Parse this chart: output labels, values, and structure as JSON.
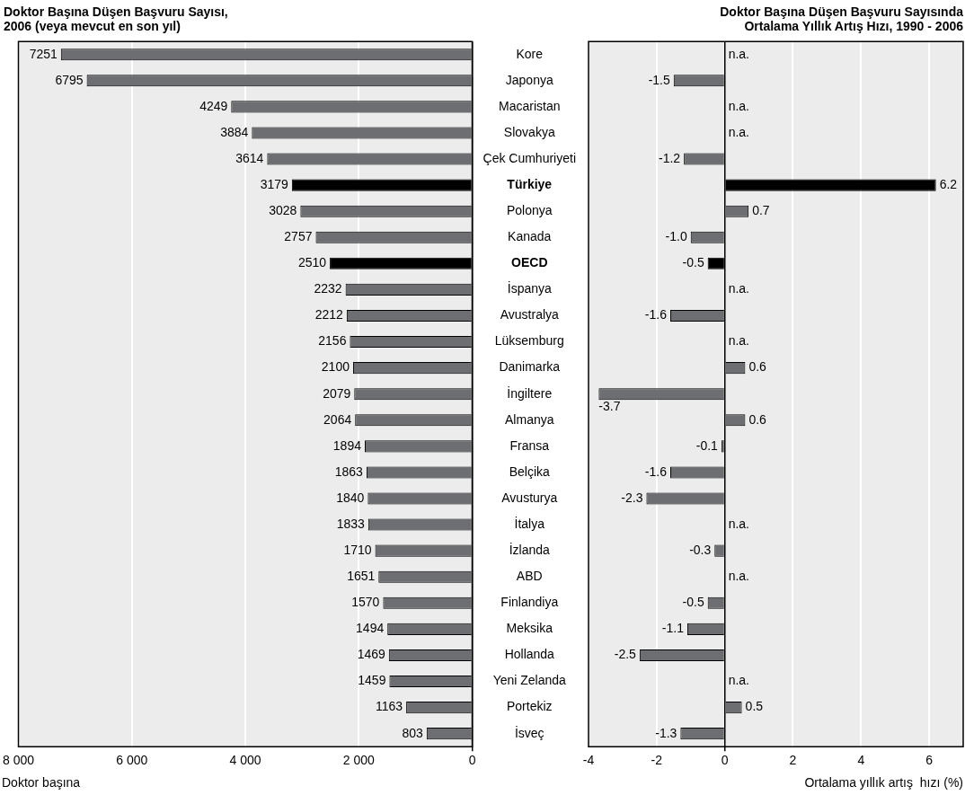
{
  "chart_data": [
    {
      "type": "bar",
      "orientation": "horizontal",
      "title": "Doktor Başına Düşen Başvuru Sayısı,\n2006 (veya mevcut en son yıl)",
      "xlabel": "Doktor başına",
      "categories": [
        "Kore",
        "Japonya",
        "Macaristan",
        "Slovakya",
        "Çek Cumhuriyeti",
        "Türkiye",
        "Polonya",
        "Kanada",
        "OECD",
        "İspanya",
        "Avustralya",
        "Lüksemburg",
        "Danimarka",
        "İngiltere",
        "Almanya",
        "Fransa",
        "Belçika",
        "Avusturya",
        "İtalya",
        "İzlanda",
        "ABD",
        "Finlandiya",
        "Meksika",
        "Hollanda",
        "Yeni Zelanda",
        "Portekiz",
        "İsveç"
      ],
      "values": [
        7251,
        6795,
        4249,
        3884,
        3614,
        3179,
        3028,
        2757,
        2510,
        2232,
        2212,
        2156,
        2100,
        2079,
        2064,
        1894,
        1863,
        1840,
        1833,
        1710,
        1651,
        1570,
        1494,
        1469,
        1459,
        1163,
        803
      ],
      "colors": [
        "#6d6e71",
        "#6d6e71",
        "#6d6e71",
        "#6d6e71",
        "#6d6e71",
        "#000000",
        "#6d6e71",
        "#6d6e71",
        "#000000",
        "#6d6e71",
        "#6d6e71",
        "#6d6e71",
        "#6d6e71",
        "#6d6e71",
        "#6d6e71",
        "#6d6e71",
        "#6d6e71",
        "#6d6e71",
        "#6d6e71",
        "#6d6e71",
        "#6d6e71",
        "#6d6e71",
        "#6d6e71",
        "#6d6e71",
        "#6d6e71",
        "#6d6e71",
        "#6d6e71"
      ],
      "xlim": [
        8000,
        0
      ],
      "xticks": [
        {
          "value": 8000,
          "label": "8 000"
        },
        {
          "value": 6000,
          "label": "6 000"
        },
        {
          "value": 4000,
          "label": "4 000"
        },
        {
          "value": 2000,
          "label": "2 000"
        },
        0
      ],
      "data_labels": true,
      "grid": "x",
      "legend": false
    },
    {
      "type": "bar",
      "orientation": "horizontal",
      "title": "Doktor Başına Düşen Başvuru Sayısında\nOrtalama Yıllık Artış Hızı, 1990 - 2006",
      "xlabel": "Ortalama yıllık artış  hızı (%)",
      "categories": [
        null,
        null,
        null,
        null,
        null,
        null,
        null,
        null,
        null,
        null,
        null,
        null,
        null,
        null,
        null,
        null,
        null,
        null,
        null,
        null,
        null,
        null,
        null,
        null,
        null,
        null,
        null
      ],
      "values": [
        null,
        -1.5,
        null,
        null,
        -1.2,
        6.2,
        0.7,
        -1.0,
        -0.5,
        null,
        -1.6,
        null,
        0.6,
        -3.7,
        0.6,
        -0.1,
        -1.6,
        -2.3,
        null,
        -0.3,
        null,
        -0.5,
        -1.1,
        -2.5,
        null,
        0.5,
        -1.3
      ],
      "value_labels": [
        "n.a.",
        "-1.5",
        "n.a.",
        "n.a.",
        "-1.2",
        "6.2",
        "0.7",
        "-1.0",
        "-0.5",
        "n.a.",
        "-1.6",
        "n.a.",
        "0.6",
        "-3.7",
        "0.6",
        "-0.1",
        "-1.6",
        "-2.3",
        "n.a.",
        "-0.3",
        "n.a.",
        "-0.5",
        "-1.1",
        "-2.5",
        "n.a.",
        "0.5",
        "-1.3"
      ],
      "colors": [
        "#6d6e71",
        "#6d6e71",
        "#6d6e71",
        "#6d6e71",
        "#6d6e71",
        "#000000",
        "#6d6e71",
        "#6d6e71",
        "#000000",
        "#6d6e71",
        "#6d6e71",
        "#6d6e71",
        "#6d6e71",
        "#6d6e71",
        "#6d6e71",
        "#6d6e71",
        "#6d6e71",
        "#6d6e71",
        "#6d6e71",
        "#6d6e71",
        "#6d6e71",
        "#6d6e71",
        "#6d6e71",
        "#6d6e71",
        "#6d6e71",
        "#6d6e71",
        "#6d6e71"
      ],
      "xlim": [
        -4,
        7
      ],
      "xticks": [
        -4,
        -2,
        0,
        2,
        4,
        6
      ],
      "tick_labels": "x",
      "grid": "x",
      "legend": false
    }
  ]
}
